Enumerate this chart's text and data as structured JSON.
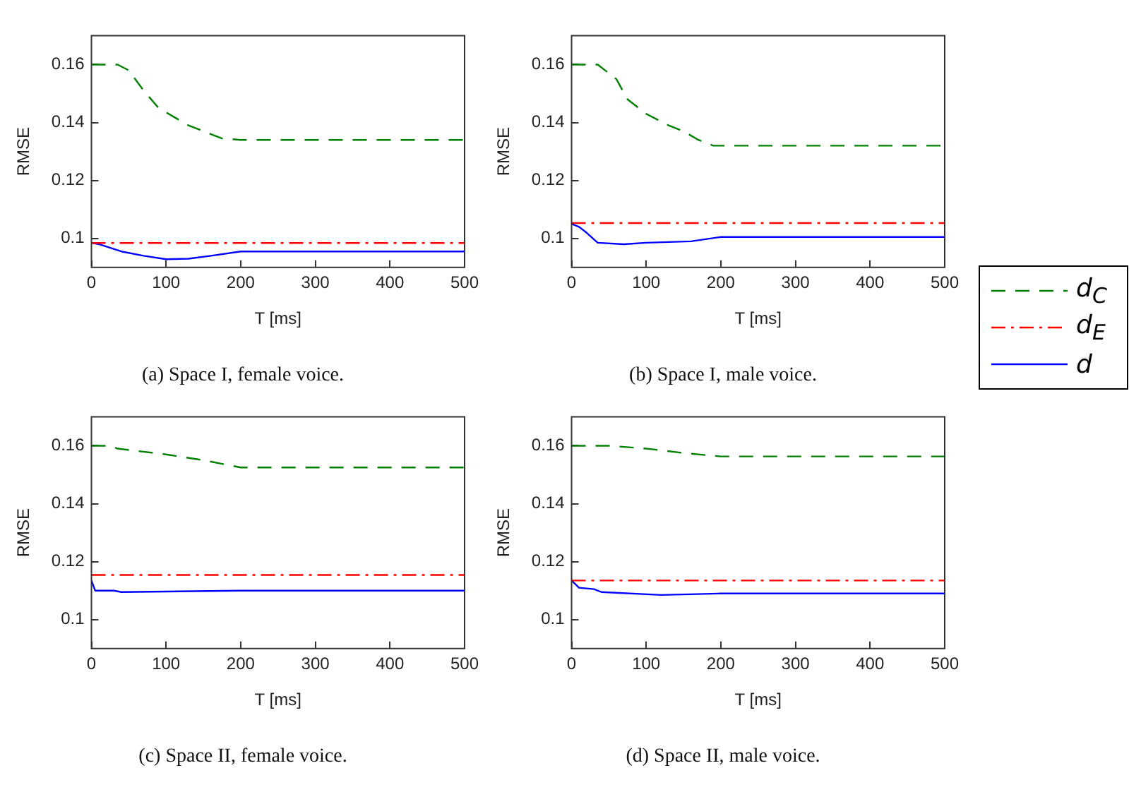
{
  "chart_data": [
    {
      "type": "line",
      "title": "(a) Space I, female voice.",
      "xlabel": "T [ms]",
      "ylabel": "RMSE",
      "xlim": [
        0,
        500
      ],
      "xticks": [
        0,
        100,
        200,
        300,
        400,
        500
      ],
      "ylim": [
        0.09,
        0.17
      ],
      "yticks": [
        0.1,
        0.12,
        0.14,
        0.16
      ],
      "grid": false,
      "legend": false,
      "series": [
        {
          "color": "#008000",
          "line_style": "dashed",
          "x": [
            0,
            35,
            50,
            70,
            90,
            110,
            130,
            150,
            175,
            200,
            500
          ],
          "values": [
            0.16,
            0.16,
            0.158,
            0.151,
            0.145,
            0.142,
            0.139,
            0.137,
            0.1345,
            0.134,
            0.134
          ]
        },
        {
          "color": "#ff0000",
          "line_style": "dashdot",
          "x": [
            0,
            500
          ],
          "values": [
            0.0984,
            0.0984
          ]
        },
        {
          "color": "#0000ff",
          "line_style": "solid",
          "x": [
            0,
            10,
            40,
            70,
            100,
            130,
            160,
            200,
            500
          ],
          "values": [
            0.0985,
            0.098,
            0.0955,
            0.094,
            0.0928,
            0.093,
            0.094,
            0.0955,
            0.0955
          ]
        }
      ]
    },
    {
      "type": "line",
      "title": "(b) Space I, male voice.",
      "xlabel": "T [ms]",
      "ylabel": "RMSE",
      "xlim": [
        0,
        500
      ],
      "xticks": [
        0,
        100,
        200,
        300,
        400,
        500
      ],
      "ylim": [
        0.09,
        0.17
      ],
      "yticks": [
        0.1,
        0.12,
        0.14,
        0.16
      ],
      "grid": false,
      "legend": "right",
      "series": [
        {
          "name": "d$_{C}$",
          "color": "#008000",
          "line_style": "dashed",
          "x": [
            0,
            35,
            50,
            60,
            75,
            100,
            130,
            150,
            170,
            190,
            500
          ],
          "values": [
            0.16,
            0.16,
            0.157,
            0.155,
            0.148,
            0.143,
            0.139,
            0.137,
            0.134,
            0.132,
            0.132
          ]
        },
        {
          "name": "d$_{E}$",
          "color": "#ff0000",
          "line_style": "dashdot",
          "x": [
            0,
            500
          ],
          "values": [
            0.1053,
            0.1053
          ]
        },
        {
          "name": "d",
          "color": "#0000ff",
          "line_style": "solid",
          "x": [
            0,
            10,
            20,
            35,
            70,
            100,
            160,
            200,
            500
          ],
          "values": [
            0.105,
            0.104,
            0.102,
            0.0985,
            0.098,
            0.0985,
            0.099,
            0.1005,
            0.1005
          ]
        }
      ]
    },
    {
      "type": "line",
      "title": "(c) Space II, female voice.",
      "xlabel": "T [ms]",
      "ylabel": "RMSE",
      "xlim": [
        0,
        500
      ],
      "xticks": [
        0,
        100,
        200,
        300,
        400,
        500
      ],
      "ylim": [
        0.09,
        0.17
      ],
      "yticks": [
        0.1,
        0.12,
        0.14,
        0.16
      ],
      "grid": false,
      "legend": false,
      "series": [
        {
          "color": "#008000",
          "line_style": "dashed",
          "x": [
            0,
            25,
            35,
            100,
            150,
            200,
            500
          ],
          "values": [
            0.16,
            0.16,
            0.159,
            0.157,
            0.155,
            0.1525,
            0.1525
          ]
        },
        {
          "color": "#ff0000",
          "line_style": "dashdot",
          "x": [
            0,
            500
          ],
          "values": [
            0.1154,
            0.1154
          ]
        },
        {
          "color": "#0000ff",
          "line_style": "solid",
          "x": [
            0,
            5,
            30,
            40,
            200,
            500
          ],
          "values": [
            0.1135,
            0.11,
            0.11,
            0.1095,
            0.11,
            0.11
          ]
        }
      ]
    },
    {
      "type": "line",
      "title": "(d) Space II, male voice.",
      "xlabel": "T [ms]",
      "ylabel": "RMSE",
      "xlim": [
        0,
        500
      ],
      "xticks": [
        0,
        100,
        200,
        300,
        400,
        500
      ],
      "ylim": [
        0.09,
        0.17
      ],
      "yticks": [
        0.1,
        0.12,
        0.14,
        0.16
      ],
      "grid": false,
      "legend": false,
      "series": [
        {
          "color": "#008000",
          "line_style": "dashed",
          "x": [
            0,
            50,
            100,
            150,
            200,
            500
          ],
          "values": [
            0.16,
            0.16,
            0.159,
            0.1575,
            0.1563,
            0.1563
          ]
        },
        {
          "color": "#ff0000",
          "line_style": "dashdot",
          "x": [
            0,
            500
          ],
          "values": [
            0.1135,
            0.1135
          ]
        },
        {
          "color": "#0000ff",
          "line_style": "solid",
          "x": [
            0,
            10,
            30,
            40,
            120,
            200,
            500
          ],
          "values": [
            0.1135,
            0.111,
            0.1105,
            0.1095,
            0.1085,
            0.109,
            0.109
          ]
        }
      ]
    }
  ]
}
